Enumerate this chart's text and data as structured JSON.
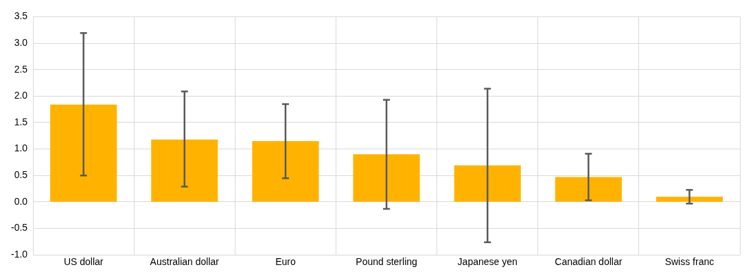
{
  "chart_data": {
    "type": "bar",
    "categories": [
      "US dollar",
      "Australian dollar",
      "Euro",
      "Pound sterling",
      "Japanese yen",
      "Canadian dollar",
      "Swiss franc"
    ],
    "values": [
      1.84,
      1.18,
      1.15,
      0.9,
      0.69,
      0.47,
      0.1
    ],
    "errors": [
      [
        0.5,
        3.19
      ],
      [
        0.29,
        2.09
      ],
      [
        0.45,
        1.85
      ],
      [
        -0.13,
        1.93
      ],
      [
        -0.76,
        2.14
      ],
      [
        0.03,
        0.91
      ],
      [
        -0.03,
        0.23
      ]
    ],
    "color": "#ffb300",
    "ylim": [
      -1,
      3.5
    ],
    "yticks": [
      {
        "value": -1,
        "label": "-1.0"
      },
      {
        "value": -0.5,
        "label": "-0.5"
      },
      {
        "value": 0,
        "label": "0.0"
      },
      {
        "value": 0.5,
        "label": "0.5"
      },
      {
        "value": 1,
        "label": "1.0"
      },
      {
        "value": 1.5,
        "label": "1.5"
      },
      {
        "value": 2,
        "label": "2.0"
      },
      {
        "value": 2.5,
        "label": "2.5"
      },
      {
        "value": 3,
        "label": "3.0"
      },
      {
        "value": 3.5,
        "label": "3.5"
      }
    ],
    "grid": true,
    "legend": false
  }
}
